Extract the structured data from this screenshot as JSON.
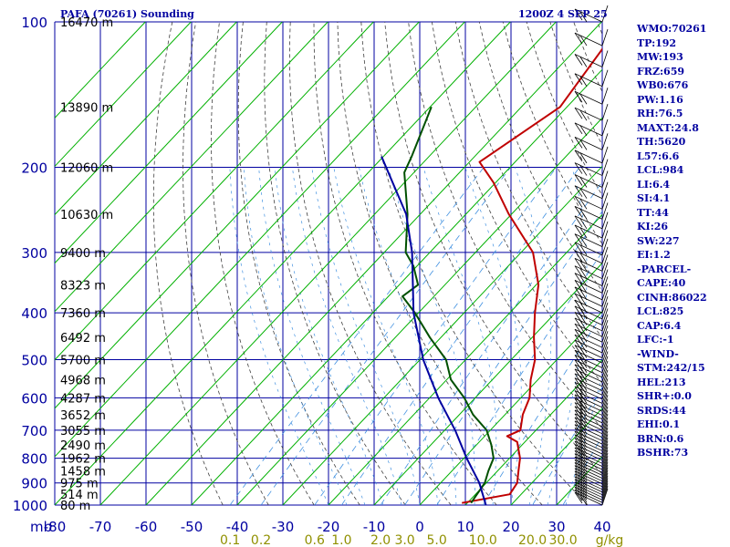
{
  "header": {
    "title": "PAFA (70261) Sounding",
    "time": "1200Z  4 SEP 25"
  },
  "colors": {
    "grid": "#0000a0",
    "dry_adiabat": "#00b000",
    "moist_adiabat": "#404040",
    "mixing_ratio": "#4090e0",
    "temperature": "#c00000",
    "dewpoint": "#005000",
    "parcel": "#0000a0",
    "axis_labels": "#0000a0",
    "mixing_labels": "#909000",
    "height_labels": "#000000"
  },
  "chart_data": {
    "type": "line",
    "title": "PAFA (70261) Sounding",
    "subtitle": "1200Z  4 SEP 25",
    "xlabel": "",
    "ylabel": "",
    "y_unit": "mb",
    "x_unit": "°C",
    "y_scale": "log",
    "ylim": [
      1000,
      100
    ],
    "xlim": [
      -80,
      40
    ],
    "grid": true,
    "pressure_ticks": [
      100,
      200,
      300,
      400,
      500,
      600,
      700,
      800,
      900,
      1000
    ],
    "pressure_tick_labels": [
      "100",
      "200",
      "300",
      "400",
      "500",
      "600",
      "700",
      "800",
      "900",
      "1000"
    ],
    "y_unit_label": "mb",
    "temp_ticks": [
      -80,
      -70,
      -60,
      -50,
      -40,
      -30,
      -20,
      -10,
      0,
      10,
      20,
      30,
      40
    ],
    "temp_tick_labels": [
      "-80",
      "-70",
      "-60",
      "-50",
      "-40",
      "-30",
      "-20",
      "-10",
      "0",
      "10",
      "20",
      "30",
      "40"
    ],
    "mixing_ratio_labels": [
      "0.1",
      "0.2",
      "0.6",
      "1.0",
      "2.0",
      "3.0",
      "5.0",
      "10.0",
      "20.0",
      "30.0",
      "g/kg"
    ],
    "height_labels": [
      {
        "p": 100,
        "text": "16470 m"
      },
      {
        "p": 150,
        "text": "13890 m"
      },
      {
        "p": 200,
        "text": "12060 m"
      },
      {
        "p": 250,
        "text": "10630 m"
      },
      {
        "p": 300,
        "text": "9400 m"
      },
      {
        "p": 350,
        "text": "8323 m"
      },
      {
        "p": 400,
        "text": "7360 m"
      },
      {
        "p": 450,
        "text": "6492 m"
      },
      {
        "p": 500,
        "text": "5700 m"
      },
      {
        "p": 550,
        "text": "4968 m"
      },
      {
        "p": 600,
        "text": "4287 m"
      },
      {
        "p": 650,
        "text": "3652 m"
      },
      {
        "p": 700,
        "text": "3055 m"
      },
      {
        "p": 750,
        "text": "2490 m"
      },
      {
        "p": 800,
        "text": "1962 m"
      },
      {
        "p": 850,
        "text": "1458 m"
      },
      {
        "p": 900,
        "text": "975 m"
      },
      {
        "p": 950,
        "text": "514 m"
      },
      {
        "p": 1000,
        "text": "80 m"
      }
    ],
    "series": [
      {
        "name": "temperature",
        "points": [
          [
            100,
            -55.5
          ],
          [
            150,
            -51.5
          ],
          [
            195,
            -57.8
          ],
          [
            215,
            -50.5
          ],
          [
            250,
            -40.6
          ],
          [
            300,
            -27.4
          ],
          [
            350,
            -19.5
          ],
          [
            400,
            -14.5
          ],
          [
            450,
            -9.6
          ],
          [
            500,
            -4.8
          ],
          [
            550,
            -1.6
          ],
          [
            600,
            1.9
          ],
          [
            650,
            3.9
          ],
          [
            700,
            6.6
          ],
          [
            720,
            4.9
          ],
          [
            740,
            8.3
          ],
          [
            800,
            12.3
          ],
          [
            850,
            14.6
          ],
          [
            900,
            16.8
          ],
          [
            950,
            17.5
          ],
          [
            990,
            8.8
          ]
        ]
      },
      {
        "name": "dewpoint",
        "points": [
          [
            150,
            -79.7
          ],
          [
            190,
            -73.8
          ],
          [
            205,
            -72.1
          ],
          [
            250,
            -62.8
          ],
          [
            300,
            -55.3
          ],
          [
            320,
            -50.8
          ],
          [
            350,
            -45.9
          ],
          [
            370,
            -46.9
          ],
          [
            400,
            -40.8
          ],
          [
            450,
            -32.4
          ],
          [
            500,
            -24.3
          ],
          [
            550,
            -19.1
          ],
          [
            600,
            -12.4
          ],
          [
            650,
            -7.0
          ],
          [
            700,
            -0.8
          ],
          [
            750,
            3.2
          ],
          [
            800,
            6.5
          ],
          [
            850,
            8.0
          ],
          [
            900,
            9.7
          ],
          [
            990,
            10.8
          ]
        ]
      },
      {
        "name": "parcel",
        "points": [
          [
            190,
            -80.4
          ],
          [
            250,
            -63.1
          ],
          [
            300,
            -53.9
          ],
          [
            400,
            -41.1
          ],
          [
            500,
            -29.3
          ],
          [
            600,
            -18.1
          ],
          [
            700,
            -7.7
          ],
          [
            800,
            0.6
          ],
          [
            900,
            8.5
          ],
          [
            1000,
            14.5
          ]
        ]
      }
    ],
    "wind_barbs_side": "right"
  },
  "sidebar": {
    "indices": [
      "WMO:70261",
      "TP:192",
      "MW:193",
      "FRZ:659",
      "WB0:676",
      "PW:1.16",
      "RH:76.5",
      "MAXT:24.8",
      "TH:5620",
      "L57:6.6",
      "LCL:984",
      "LI:6.4",
      "SI:4.1",
      "TT:44",
      "KI:26",
      "SW:227",
      "EI:1.2",
      "-PARCEL-",
      "CAPE:40",
      "CINH:86022",
      "LCL:825",
      "CAP:6.4",
      "LFC:-1",
      "-WIND-",
      "STM:242/15",
      "HEL:213",
      "SHR+:0.0",
      "SRDS:44",
      "EHI:0.1",
      "BRN:0.6",
      "BSHR:73"
    ]
  }
}
